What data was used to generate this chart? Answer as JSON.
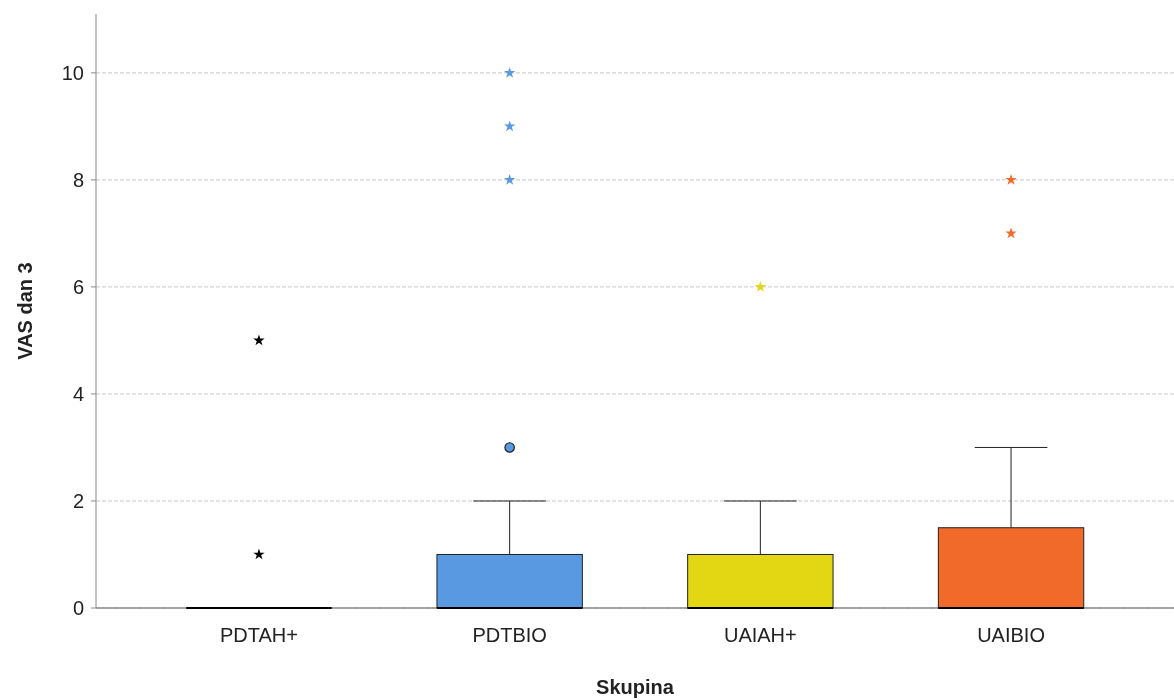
{
  "chart_data": {
    "type": "box",
    "xlabel": "Skupina",
    "ylabel": "VAS dan 3",
    "categories": [
      "PDTAH+",
      "PDTBIO",
      "UAIAH+",
      "UAIBIO"
    ],
    "ylim": [
      0,
      11.1
    ],
    "yticks": [
      0,
      2,
      4,
      6,
      8,
      10
    ],
    "grid": "y",
    "series": [
      {
        "type": "box",
        "colors": [
          "#000000",
          "#5899e2",
          "#e2d712",
          "#f26a2a"
        ],
        "marker": "star",
        "boxes": [
          {
            "low": 0,
            "q1": 0,
            "median": 0,
            "q3": 0,
            "high": 0,
            "outliers": [
              1,
              5
            ]
          },
          {
            "low": 0,
            "q1": 0,
            "median": 0,
            "q3": 1,
            "high": 2,
            "outliers": [
              8,
              9,
              10
            ]
          },
          {
            "low": 0,
            "q1": 0,
            "median": 0,
            "q3": 1,
            "high": 2,
            "outliers": [
              6
            ]
          },
          {
            "low": 0,
            "q1": 0,
            "median": 0,
            "q3": 1.5,
            "high": 3,
            "outliers": [
              7,
              8
            ]
          }
        ]
      },
      {
        "type": "scatter",
        "x": [
          "PDTBIO"
        ],
        "values": [
          3
        ],
        "color": "#5899e2",
        "marker": "circle"
      }
    ]
  }
}
